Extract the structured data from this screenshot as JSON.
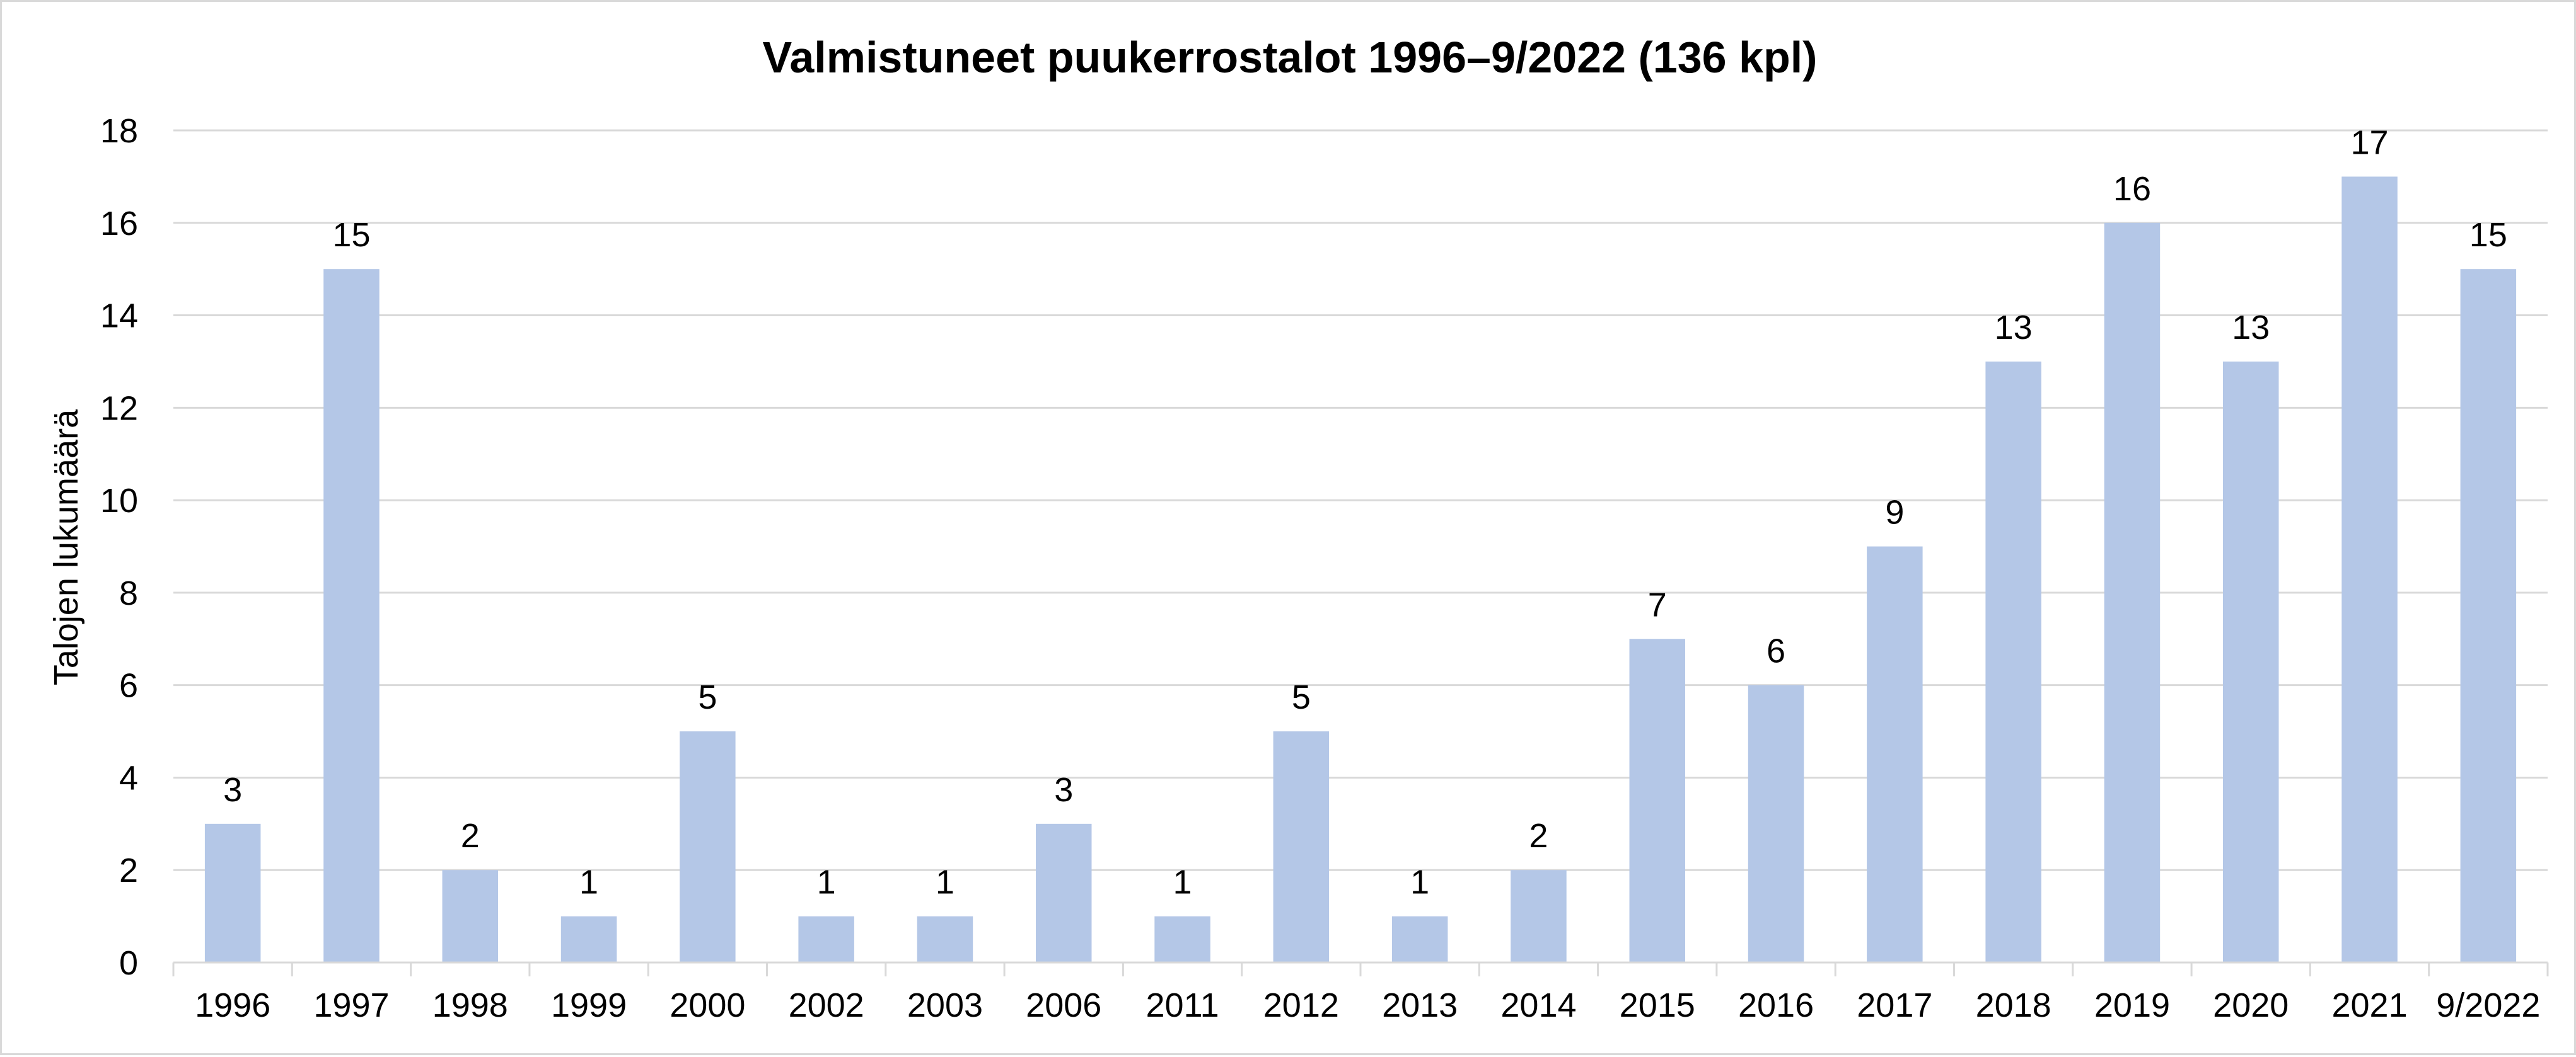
{
  "chart_data": {
    "type": "bar",
    "title": "Valmistuneet puukerrostalot 1996–9/2022 (136 kpl)",
    "xlabel": "",
    "ylabel": "Talojen lukumäärä",
    "ylim": [
      0,
      18
    ],
    "yticks": [
      0,
      2,
      4,
      6,
      8,
      10,
      12,
      14,
      16,
      18
    ],
    "grid": true,
    "bar_color": "#b4c7e7",
    "categories": [
      "1996",
      "1997",
      "1998",
      "1999",
      "2000",
      "2002",
      "2003",
      "2006",
      "2011",
      "2012",
      "2013",
      "2014",
      "2015",
      "2016",
      "2017",
      "2018",
      "2019",
      "2020",
      "2021",
      "9/2022"
    ],
    "values": [
      3,
      15,
      2,
      1,
      5,
      1,
      1,
      3,
      1,
      5,
      1,
      2,
      7,
      6,
      9,
      13,
      16,
      13,
      17,
      15
    ],
    "data_labels": [
      "3",
      "15",
      "2",
      "1",
      "5",
      "1",
      "1",
      "3",
      "1",
      "5",
      "1",
      "2",
      "7",
      "6",
      "9",
      "13",
      "16",
      "13",
      "17",
      "15"
    ]
  }
}
